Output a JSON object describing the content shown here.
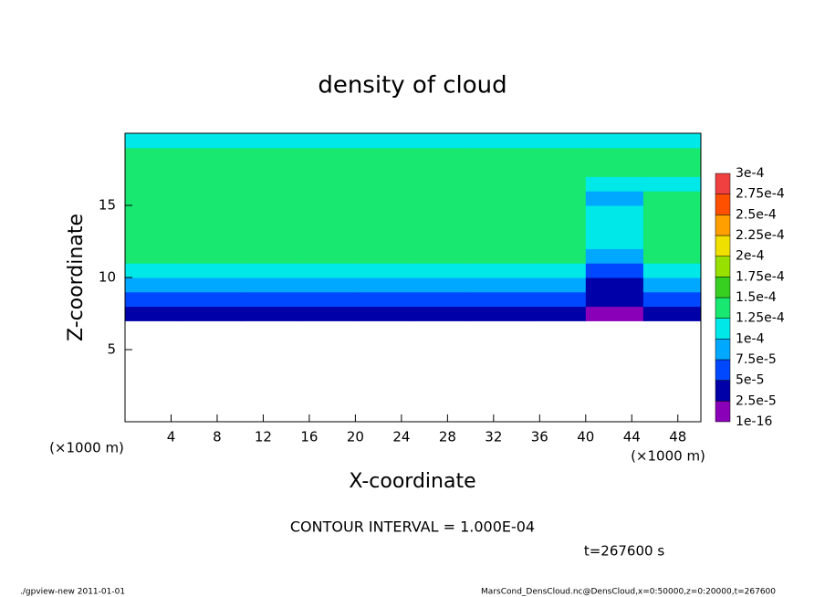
{
  "chart_data": {
    "type": "heatmap",
    "title": "density of cloud",
    "xlabel": "X-coordinate",
    "ylabel": "Z-coordinate",
    "xunit": "(×1000 m)",
    "yunit": "(×1000 m)",
    "contour_note": "CONTOUR INTERVAL = 1.000E-04",
    "time_label": "t=267600 s",
    "footer_left": "./gpview-new  2011-01-01",
    "footer_right": "MarsCond_DensCloud.nc@DensCloud,x=0:50000,z=0:20000,t=267600",
    "xlim": [
      0,
      50
    ],
    "ylim": [
      0,
      20
    ],
    "xticks": [
      4,
      8,
      12,
      16,
      20,
      24,
      28,
      32,
      36,
      40,
      44,
      48
    ],
    "yticks": [
      5,
      10,
      15
    ],
    "xbins": [
      0,
      5,
      10,
      15,
      20,
      25,
      30,
      35,
      40,
      45,
      50
    ],
    "zbins": [
      0,
      1,
      2,
      3,
      4,
      5,
      6,
      7,
      8,
      9,
      10,
      11,
      12,
      13,
      14,
      15,
      16,
      17,
      18,
      19,
      20
    ],
    "levels": [
      {
        "value": 1e-16,
        "label": "1e-16"
      },
      {
        "value": 2.5e-05,
        "label": "2.5e-5"
      },
      {
        "value": 5e-05,
        "label": "5e-5"
      },
      {
        "value": 7.5e-05,
        "label": "7.5e-5"
      },
      {
        "value": 0.0001,
        "label": "1e-4"
      },
      {
        "value": 0.000125,
        "label": "1.25e-4"
      },
      {
        "value": 0.00015,
        "label": "1.5e-4"
      },
      {
        "value": 0.000175,
        "label": "1.75e-4"
      },
      {
        "value": 0.0002,
        "label": "2e-4"
      },
      {
        "value": 0.000225,
        "label": "2.25e-4"
      },
      {
        "value": 0.00025,
        "label": "2.5e-4"
      },
      {
        "value": 0.000275,
        "label": "2.75e-4"
      },
      {
        "value": 0.0003,
        "label": "3e-4"
      }
    ],
    "colors": [
      "#8a00b8",
      "#0000a8",
      "#0048ff",
      "#00a8ff",
      "#00e8e8",
      "#18e870",
      "#38d020",
      "#98e000",
      "#f0e000",
      "#ffa000",
      "#ff5000",
      "#f04040"
    ],
    "values": [
      [
        null,
        null,
        null,
        null,
        null,
        null,
        null,
        null,
        null,
        null
      ],
      [
        null,
        null,
        null,
        null,
        null,
        null,
        null,
        null,
        null,
        null
      ],
      [
        null,
        null,
        null,
        null,
        null,
        null,
        null,
        null,
        null,
        null
      ],
      [
        null,
        null,
        null,
        null,
        null,
        null,
        null,
        null,
        null,
        null
      ],
      [
        null,
        null,
        null,
        null,
        null,
        null,
        null,
        null,
        null,
        null
      ],
      [
        null,
        null,
        null,
        null,
        null,
        null,
        null,
        null,
        null,
        null
      ],
      [
        null,
        null,
        null,
        null,
        null,
        null,
        null,
        null,
        null,
        null
      ],
      [
        3e-05,
        3e-05,
        3e-05,
        3e-05,
        3e-05,
        3e-05,
        3e-05,
        3e-05,
        2e-05,
        3e-05
      ],
      [
        6e-05,
        6e-05,
        6e-05,
        6e-05,
        6e-05,
        6e-05,
        6e-05,
        6e-05,
        3e-05,
        6e-05
      ],
      [
        8.5e-05,
        8.5e-05,
        8.5e-05,
        8.5e-05,
        8.5e-05,
        8.5e-05,
        8.5e-05,
        8.5e-05,
        4e-05,
        8.5e-05
      ],
      [
        0.000115,
        0.000115,
        0.000115,
        0.000115,
        0.000115,
        0.000115,
        0.000115,
        0.000115,
        6e-05,
        0.000115
      ],
      [
        0.00014,
        0.00014,
        0.00014,
        0.00014,
        0.00014,
        0.00014,
        0.00014,
        0.00014,
        8e-05,
        0.00014
      ],
      [
        0.00014,
        0.00014,
        0.00014,
        0.00014,
        0.00014,
        0.00014,
        0.00014,
        0.00014,
        0.00011,
        0.00014
      ],
      [
        0.00014,
        0.00014,
        0.00014,
        0.00014,
        0.00014,
        0.00014,
        0.00014,
        0.00014,
        0.00012,
        0.00014
      ],
      [
        0.00014,
        0.00014,
        0.00014,
        0.00014,
        0.00014,
        0.00014,
        0.00014,
        0.00014,
        0.00012,
        0.00014
      ],
      [
        0.00014,
        0.00014,
        0.00014,
        0.00014,
        0.00014,
        0.00014,
        0.00014,
        0.00014,
        9e-05,
        0.00014
      ],
      [
        0.00014,
        0.00014,
        0.00014,
        0.00014,
        0.00014,
        0.00014,
        0.00014,
        0.00014,
        0.00011,
        0.00012
      ],
      [
        0.000135,
        0.000135,
        0.000135,
        0.000135,
        0.000135,
        0.000135,
        0.000135,
        0.000135,
        0.000135,
        0.000135
      ],
      [
        0.000135,
        0.000135,
        0.000135,
        0.000135,
        0.000135,
        0.000135,
        0.000135,
        0.000135,
        0.000135,
        0.000135
      ],
      [
        0.00011,
        0.00011,
        0.00011,
        0.00011,
        0.00011,
        0.00011,
        0.00011,
        0.00011,
        0.00011,
        0.00011
      ]
    ]
  }
}
